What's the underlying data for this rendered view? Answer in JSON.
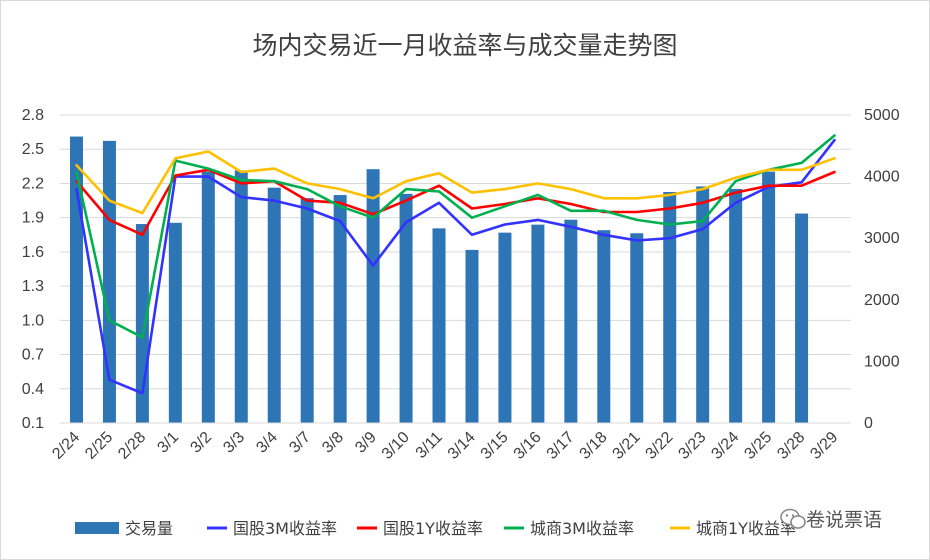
{
  "chart_data": {
    "type": "bar",
    "title": "场内交易近一月收益率与成交量走势图",
    "categories": [
      "2/24",
      "2/25",
      "2/28",
      "3/1",
      "3/2",
      "3/3",
      "3/4",
      "3/7",
      "3/8",
      "3/9",
      "3/10",
      "3/11",
      "3/14",
      "3/15",
      "3/16",
      "3/17",
      "3/18",
      "3/21",
      "3/22",
      "3/23",
      "3/24",
      "3/25",
      "3/28",
      "3/29"
    ],
    "left_axis": {
      "min": 0.1,
      "max": 2.8,
      "ticks": [
        "0.1",
        "0.4",
        "0.7",
        "1.0",
        "1.3",
        "1.6",
        "1.9",
        "2.2",
        "2.5",
        "2.8"
      ]
    },
    "right_axis": {
      "min": 0,
      "max": 5000,
      "ticks": [
        "0",
        "1000",
        "2000",
        "3000",
        "4000",
        "5000"
      ]
    },
    "grid": true,
    "legend_position": "bottom",
    "series": [
      {
        "name": "交易量",
        "kind": "bar",
        "axis": "right",
        "color": "#2e75b6",
        "values": [
          4650,
          4580,
          3230,
          3250,
          4080,
          4100,
          3820,
          3650,
          3700,
          4120,
          3720,
          3160,
          2810,
          3090,
          3220,
          3300,
          3130,
          3080,
          3750,
          3840,
          3800,
          4080,
          3400,
          null
        ]
      },
      {
        "name": "国股3M收益率",
        "kind": "line",
        "axis": "left",
        "color": "#3333ff",
        "values": [
          2.15,
          0.48,
          0.36,
          2.26,
          2.26,
          2.08,
          2.05,
          1.98,
          1.87,
          1.48,
          1.86,
          2.03,
          1.75,
          1.84,
          1.88,
          1.82,
          1.75,
          1.7,
          1.72,
          1.8,
          2.03,
          2.17,
          2.21,
          2.58
        ]
      },
      {
        "name": "国股1Y收益率",
        "kind": "line",
        "axis": "left",
        "color": "#ff0000",
        "values": [
          2.22,
          1.88,
          1.75,
          2.27,
          2.32,
          2.2,
          2.22,
          2.05,
          2.03,
          1.93,
          2.05,
          2.18,
          1.98,
          2.02,
          2.07,
          2.02,
          1.95,
          1.95,
          1.98,
          2.03,
          2.12,
          2.18,
          2.18,
          2.3
        ]
      },
      {
        "name": "城商3M收益率",
        "kind": "line",
        "axis": "left",
        "color": "#00b050",
        "values": [
          2.3,
          1.0,
          0.85,
          2.4,
          2.33,
          2.23,
          2.22,
          2.15,
          2.0,
          1.9,
          2.15,
          2.13,
          1.9,
          2.0,
          2.1,
          1.96,
          1.96,
          1.88,
          1.84,
          1.87,
          2.22,
          2.32,
          2.38,
          2.62
        ]
      },
      {
        "name": "城商1Y收益率",
        "kind": "line",
        "axis": "left",
        "color": "#ffc000",
        "values": [
          2.36,
          2.05,
          1.94,
          2.42,
          2.48,
          2.3,
          2.33,
          2.2,
          2.15,
          2.07,
          2.22,
          2.29,
          2.12,
          2.15,
          2.2,
          2.15,
          2.07,
          2.07,
          2.1,
          2.15,
          2.25,
          2.32,
          2.32,
          2.42
        ]
      }
    ]
  },
  "legend": [
    {
      "label": "交易量",
      "color": "#2e75b6",
      "kind": "bar"
    },
    {
      "label": "国股3M收益率",
      "color": "#3333ff",
      "kind": "line"
    },
    {
      "label": "国股1Y收益率",
      "color": "#ff0000",
      "kind": "line"
    },
    {
      "label": "城商3M收益率",
      "color": "#00b050",
      "kind": "line"
    },
    {
      "label": "城商1Y收益率",
      "color": "#ffc000",
      "kind": "line"
    }
  ],
  "watermark": {
    "text": "卷说票语",
    "icon": "wechat-logo-icon"
  }
}
